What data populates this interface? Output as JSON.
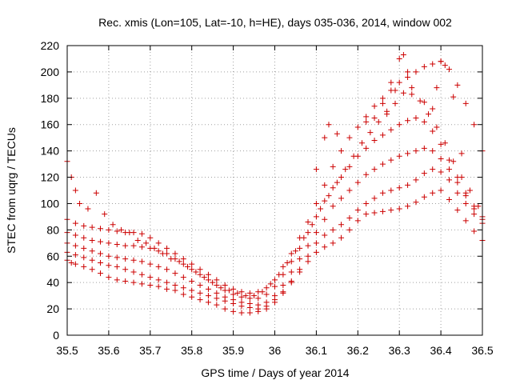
{
  "chart_data": {
    "type": "scatter",
    "title": "Rec. xmis (Lon=105, Lat=-10, h=HE), days 035-036, 2014, window 002",
    "xlabel": "GPS time / Days of year 2014",
    "ylabel": "STEC from uqrg / TECUs",
    "xlim": [
      35.5,
      36.5
    ],
    "ylim": [
      0,
      220
    ],
    "xticks": [
      "35.5",
      "35.6",
      "35.7",
      "35.8",
      "35.9",
      "36",
      "36.1",
      "36.2",
      "36.3",
      "36.4",
      "36.5"
    ],
    "yticks": [
      "0",
      "20",
      "40",
      "60",
      "80",
      "100",
      "120",
      "140",
      "160",
      "180",
      "200",
      "220"
    ],
    "grid": true,
    "marker": "+",
    "color": "#cc0000",
    "series": [
      {
        "x": [
          35.5,
          35.51,
          35.52,
          35.54,
          35.56,
          35.58,
          35.6,
          35.62,
          35.64,
          35.66,
          35.68,
          35.7,
          35.72,
          35.74,
          35.76,
          35.78,
          35.8,
          35.82,
          35.84,
          35.86,
          35.88,
          35.9,
          35.92,
          35.94,
          35.96,
          35.98,
          36.0,
          36.02,
          36.04,
          36.06,
          36.08,
          36.1,
          36.12,
          36.14,
          36.16,
          36.18,
          36.2,
          36.22,
          36.24,
          36.26,
          36.28,
          36.3,
          36.32,
          36.34,
          36.36,
          36.38,
          36.4,
          36.42,
          36.44,
          36.46,
          36.48,
          36.5
        ],
        "y": [
          57,
          55,
          54,
          52,
          50,
          47,
          44,
          42,
          41,
          40,
          39,
          38,
          37,
          35,
          34,
          31,
          29,
          27,
          25,
          23,
          20,
          18,
          17,
          17,
          18,
          20,
          25,
          32,
          40,
          48,
          56,
          63,
          67,
          70,
          74,
          80,
          87,
          92,
          93,
          94,
          95,
          96,
          98,
          101,
          105,
          108,
          110,
          103,
          95,
          87,
          79,
          72
        ]
      },
      {
        "x": [
          35.5,
          35.52,
          35.54,
          35.56,
          35.58,
          35.6,
          35.62,
          35.64,
          35.66,
          35.68,
          35.7,
          35.72,
          35.74,
          35.76,
          35.78,
          35.8,
          35.82,
          35.84,
          35.86,
          35.88,
          35.9,
          35.92,
          35.94,
          35.96,
          35.98,
          36.0,
          36.02,
          36.04,
          36.06,
          36.08,
          36.1,
          36.12,
          36.14,
          36.16,
          36.18,
          36.2,
          36.22,
          36.24,
          36.26,
          36.28,
          36.3,
          36.32,
          36.34,
          36.36,
          36.38,
          36.4,
          36.42,
          36.44,
          36.46,
          36.48,
          36.5
        ],
        "y": [
          63,
          61,
          59,
          57,
          55,
          53,
          52,
          50,
          48,
          46,
          44,
          42,
          40,
          38,
          36,
          34,
          32,
          30,
          28,
          26,
          24,
          22,
          21,
          20,
          22,
          27,
          33,
          41,
          50,
          60,
          70,
          76,
          80,
          84,
          89,
          95,
          100,
          104,
          108,
          110,
          112,
          114,
          118,
          123,
          126,
          124,
          118,
          108,
          100,
          92,
          85
        ]
      },
      {
        "x": [
          35.5,
          35.52,
          35.54,
          35.56,
          35.58,
          35.6,
          35.62,
          35.64,
          35.66,
          35.68,
          35.7,
          35.72,
          35.74,
          35.76,
          35.78,
          35.8,
          35.82,
          35.84,
          35.86,
          35.88,
          35.9,
          35.92,
          35.94,
          35.96,
          35.98,
          36.0,
          36.02,
          36.04,
          36.06,
          36.08,
          36.1,
          36.12,
          36.14,
          36.16,
          36.18,
          36.2,
          36.22,
          36.24,
          36.26,
          36.28,
          36.3,
          36.32,
          36.34,
          36.36,
          36.38,
          36.4,
          36.42,
          36.44,
          36.46,
          36.48,
          36.5
        ],
        "y": [
          70,
          68,
          66,
          64,
          62,
          60,
          59,
          58,
          57,
          56,
          54,
          52,
          50,
          47,
          44,
          41,
          38,
          35,
          32,
          29,
          27,
          25,
          24,
          23,
          25,
          30,
          38,
          48,
          58,
          68,
          78,
          88,
          98,
          104,
          110,
          116,
          122,
          126,
          130,
          133,
          136,
          138,
          140,
          142,
          140,
          134,
          126,
          116,
          106,
          96,
          88
        ]
      },
      {
        "x": [
          35.5,
          35.52,
          35.54,
          35.56,
          35.58,
          35.6,
          35.62,
          35.64,
          35.66,
          35.68,
          35.7,
          35.72,
          35.74,
          35.76,
          35.78,
          35.8,
          35.82,
          35.84,
          35.86,
          35.88,
          35.9,
          35.92,
          35.94,
          35.96,
          35.98,
          36.0,
          36.02,
          36.04,
          36.06,
          36.08,
          36.1,
          36.12,
          36.14,
          36.16,
          36.18,
          36.2,
          36.22,
          36.24,
          36.26,
          36.28,
          36.3,
          36.32,
          36.34,
          36.36,
          36.38,
          36.4,
          36.42,
          36.44,
          36.46,
          36.48,
          36.5
        ],
        "y": [
          78,
          76,
          74,
          72,
          71,
          70,
          69,
          68,
          68,
          67,
          66,
          64,
          62,
          58,
          54,
          50,
          46,
          42,
          38,
          34,
          31,
          29,
          28,
          28,
          31,
          37,
          46,
          56,
          66,
          78,
          90,
          102,
          112,
          120,
          128,
          136,
          142,
          148,
          152,
          156,
          160,
          163,
          165,
          162,
          155,
          145,
          133,
          120,
          108,
          98,
          90
        ]
      },
      {
        "x": [
          35.5,
          35.52,
          35.54,
          35.56,
          35.58,
          35.6,
          35.62,
          35.64,
          35.66,
          35.68,
          35.7,
          35.72,
          35.74,
          35.76,
          35.78,
          35.8,
          35.82,
          35.84,
          35.86,
          35.88,
          35.9,
          35.92,
          35.94,
          35.96,
          35.98,
          36.0,
          36.02,
          36.04,
          36.06,
          36.08,
          36.1,
          36.12,
          36.14,
          36.16,
          36.18,
          36.2,
          36.22,
          36.24,
          36.26,
          36.28,
          36.3,
          36.32,
          36.34,
          36.36,
          36.38,
          36.4,
          36.42,
          36.44,
          36.46,
          36.48,
          36.5
        ],
        "y": [
          88,
          85,
          83,
          82,
          81,
          80,
          79,
          78,
          78,
          77,
          74,
          70,
          66,
          62,
          58,
          54,
          50,
          46,
          42,
          38,
          35,
          33,
          32,
          33,
          36,
          42,
          52,
          62,
          74,
          86,
          100,
          114,
          128,
          140,
          150,
          158,
          166,
          174,
          180,
          186,
          192,
          196,
          200,
          204,
          206,
          208,
          202,
          190,
          176,
          160,
          140
        ]
      },
      {
        "x": [
          35.5,
          35.51,
          35.52,
          35.53,
          35.55,
          35.57,
          35.59,
          35.61,
          35.63,
          35.65,
          35.67,
          35.69,
          35.71,
          35.73,
          35.75,
          35.77,
          35.79,
          35.81,
          35.83,
          35.85,
          35.87,
          35.89,
          35.91,
          35.93,
          35.95,
          35.97,
          35.99,
          36.01,
          36.03,
          36.05,
          36.07,
          36.09,
          36.11,
          36.13,
          36.15,
          36.17,
          36.19,
          36.21,
          36.23,
          36.25,
          36.27,
          36.29,
          36.31,
          36.33,
          36.35,
          36.37,
          36.39,
          36.41,
          36.43,
          36.45,
          36.47,
          36.49
        ],
        "y": [
          132,
          120,
          110,
          100,
          96,
          108,
          92,
          84,
          80,
          78,
          72,
          70,
          66,
          62,
          58,
          56,
          52,
          48,
          44,
          40,
          36,
          34,
          32,
          30,
          30,
          33,
          39,
          46,
          55,
          64,
          74,
          84,
          96,
          106,
          116,
          126,
          136,
          146,
          154,
          162,
          170,
          176,
          184,
          188,
          178,
          168,
          158,
          146,
          132,
          120,
          110,
          98
        ]
      },
      {
        "x": [
          36.1,
          36.12,
          36.13,
          36.15,
          36.22,
          36.24,
          36.26,
          36.27,
          36.28,
          36.29,
          36.3,
          36.31,
          36.32,
          36.33,
          36.36,
          36.38,
          36.39,
          36.4,
          36.41,
          36.43,
          36.45
        ],
        "y": [
          126,
          150,
          160,
          153,
          162,
          165,
          176,
          168,
          192,
          186,
          210,
          213,
          200,
          183,
          177,
          172,
          188,
          208,
          205,
          181,
          138
        ]
      }
    ]
  }
}
